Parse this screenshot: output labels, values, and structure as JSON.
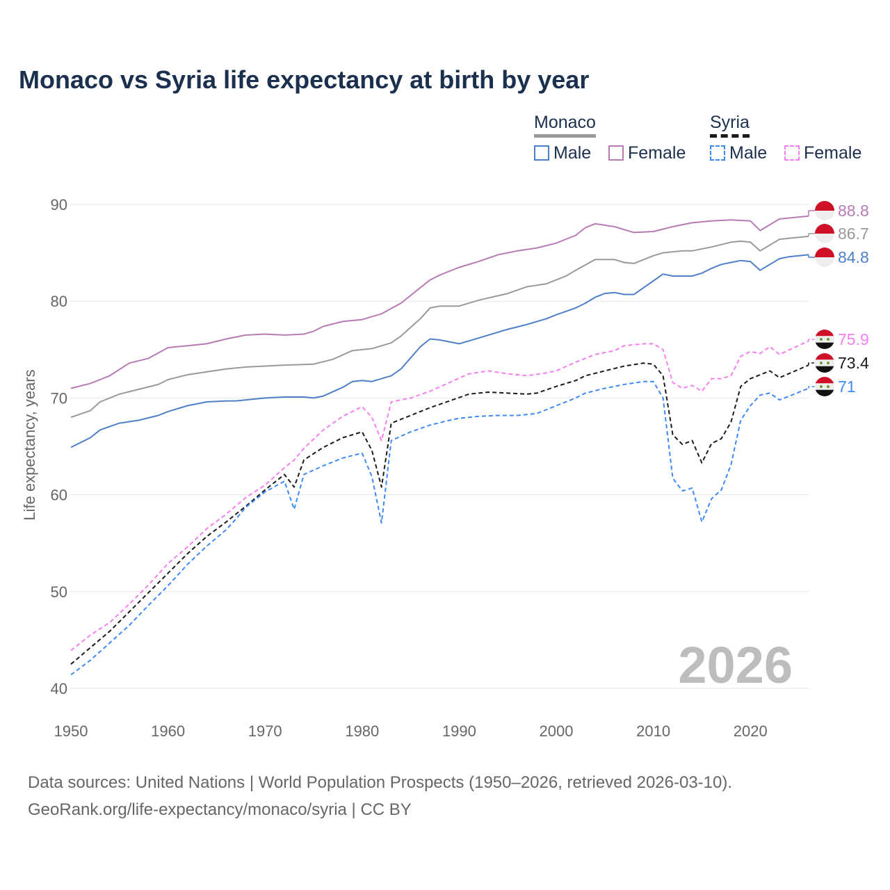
{
  "chart_data": {
    "type": "line",
    "title": "Monaco vs Syria life expectancy at birth by year",
    "xlabel": "",
    "ylabel": "Life expectancy, years",
    "xlim": [
      1950,
      2026
    ],
    "ylim": [
      40,
      90
    ],
    "xticks": [
      1950,
      1960,
      1970,
      1980,
      1990,
      2000,
      2010,
      2020
    ],
    "yticks": [
      40,
      50,
      60,
      70,
      80,
      90
    ],
    "grid": true,
    "watermark_year": "2026",
    "legend": {
      "groups": [
        {
          "name": "Monaco",
          "items": [
            "Male",
            "Female"
          ]
        },
        {
          "name": "Syria",
          "items": [
            "Male",
            "Female"
          ]
        }
      ],
      "placement": "top-right"
    },
    "series": [
      {
        "name": "Monaco Female",
        "color": "#b87ab5",
        "dash": false,
        "end_label": "88.8",
        "x": [
          1950,
          1952,
          1954,
          1956,
          1958,
          1960,
          1962,
          1964,
          1966,
          1968,
          1970,
          1972,
          1974,
          1975,
          1976,
          1978,
          1980,
          1982,
          1984,
          1986,
          1987,
          1988,
          1990,
          1992,
          1994,
          1996,
          1998,
          2000,
          2002,
          2003,
          2004,
          2006,
          2008,
          2010,
          2012,
          2014,
          2016,
          2018,
          2020,
          2021,
          2023,
          2026
        ],
        "y": [
          71.0,
          71.5,
          72.3,
          73.6,
          74.1,
          75.2,
          75.4,
          75.6,
          76.1,
          76.5,
          76.6,
          76.5,
          76.6,
          76.9,
          77.4,
          77.9,
          78.1,
          78.7,
          79.8,
          81.4,
          82.2,
          82.7,
          83.5,
          84.1,
          84.8,
          85.2,
          85.5,
          86.0,
          86.8,
          87.6,
          88.0,
          87.7,
          87.1,
          87.2,
          87.7,
          88.1,
          88.3,
          88.4,
          88.3,
          87.3,
          88.5,
          88.8
        ]
      },
      {
        "name": "Monaco Total",
        "color": "#999999",
        "dash": false,
        "end_label": "86.7",
        "x": [
          1950,
          1952,
          1953,
          1955,
          1957,
          1959,
          1960,
          1962,
          1964,
          1966,
          1968,
          1970,
          1972,
          1975,
          1977,
          1979,
          1981,
          1983,
          1984,
          1986,
          1987,
          1988,
          1990,
          1992,
          1995,
          1997,
          1999,
          2001,
          2002,
          2004,
          2006,
          2007,
          2008,
          2010,
          2011,
          2013,
          2014,
          2016,
          2018,
          2019,
          2020,
          2021,
          2023,
          2026
        ],
        "y": [
          68.0,
          68.7,
          69.6,
          70.4,
          70.9,
          71.4,
          71.9,
          72.4,
          72.7,
          73.0,
          73.2,
          73.3,
          73.4,
          73.5,
          74.0,
          74.9,
          75.1,
          75.7,
          76.4,
          78.2,
          79.3,
          79.5,
          79.5,
          80.1,
          80.8,
          81.5,
          81.8,
          82.6,
          83.2,
          84.3,
          84.3,
          84.0,
          83.9,
          84.7,
          85.0,
          85.2,
          85.2,
          85.6,
          86.1,
          86.2,
          86.1,
          85.2,
          86.4,
          86.7
        ]
      },
      {
        "name": "Monaco Male",
        "color": "#4f7ec9",
        "dash": false,
        "end_label": "84.8",
        "x": [
          1950,
          1952,
          1953,
          1955,
          1957,
          1959,
          1960,
          1962,
          1964,
          1966,
          1967,
          1969,
          1970,
          1972,
          1974,
          1975,
          1976,
          1978,
          1979,
          1980,
          1981,
          1983,
          1984,
          1986,
          1987,
          1988,
          1990,
          1991,
          1993,
          1995,
          1997,
          1999,
          2000,
          2002,
          2003,
          2004,
          2005,
          2006,
          2007,
          2008,
          2009,
          2010,
          2011,
          2012,
          2013,
          2014,
          2015,
          2016,
          2017,
          2018,
          2019,
          2020,
          2021,
          2022,
          2023,
          2024,
          2026
        ],
        "y": [
          64.9,
          65.9,
          66.7,
          67.4,
          67.7,
          68.2,
          68.6,
          69.2,
          69.6,
          69.7,
          69.7,
          69.9,
          70.0,
          70.1,
          70.1,
          70.0,
          70.2,
          71.1,
          71.7,
          71.8,
          71.7,
          72.3,
          73.0,
          75.3,
          76.1,
          76.0,
          75.6,
          75.9,
          76.5,
          77.1,
          77.6,
          78.2,
          78.6,
          79.3,
          79.8,
          80.4,
          80.8,
          80.9,
          80.7,
          80.7,
          81.4,
          82.1,
          82.8,
          82.6,
          82.6,
          82.6,
          82.9,
          83.4,
          83.8,
          84.0,
          84.2,
          84.1,
          83.2,
          83.8,
          84.4,
          84.6,
          84.8
        ]
      },
      {
        "name": "Syria Female",
        "color": "#f57ff0",
        "dash": true,
        "end_label": "75.9",
        "x": [
          1950,
          1952,
          1954,
          1956,
          1958,
          1960,
          1962,
          1964,
          1966,
          1968,
          1970,
          1972,
          1973,
          1974,
          1976,
          1978,
          1980,
          1981,
          1982,
          1983,
          1985,
          1987,
          1989,
          1991,
          1993,
          1995,
          1997,
          1999,
          2000,
          2002,
          2004,
          2006,
          2007,
          2009,
          2010,
          2011,
          2012,
          2013,
          2014,
          2015,
          2016,
          2017,
          2018,
          2019,
          2020,
          2021,
          2022,
          2023,
          2026
        ],
        "y": [
          43.9,
          45.5,
          46.8,
          48.7,
          50.7,
          52.9,
          54.6,
          56.5,
          58.0,
          59.7,
          61.0,
          62.8,
          63.6,
          64.8,
          66.7,
          68.1,
          69.1,
          68.0,
          65.6,
          69.6,
          70.0,
          70.7,
          71.6,
          72.5,
          72.8,
          72.5,
          72.3,
          72.6,
          72.8,
          73.7,
          74.5,
          74.9,
          75.4,
          75.6,
          75.6,
          75.0,
          71.6,
          71.0,
          71.3,
          70.7,
          72.0,
          72.0,
          72.3,
          74.3,
          74.8,
          74.6,
          75.3,
          74.5,
          75.9
        ]
      },
      {
        "name": "Syria Total",
        "color": "#1a1a1a",
        "dash": true,
        "end_label": "73.4",
        "x": [
          1950,
          1952,
          1954,
          1956,
          1958,
          1960,
          1962,
          1964,
          1966,
          1967,
          1968,
          1970,
          1972,
          1973,
          1974,
          1976,
          1978,
          1980,
          1981,
          1982,
          1983,
          1985,
          1987,
          1989,
          1991,
          1993,
          1995,
          1997,
          1998,
          2000,
          2002,
          2003,
          2005,
          2007,
          2009,
          2010,
          2011,
          2012,
          2013,
          2014,
          2015,
          2016,
          2017,
          2018,
          2019,
          2020,
          2022,
          2023,
          2026
        ],
        "y": [
          42.5,
          44.2,
          45.9,
          47.9,
          49.9,
          51.9,
          53.9,
          55.7,
          57.2,
          58.0,
          58.8,
          60.5,
          62.1,
          60.8,
          63.6,
          64.9,
          65.9,
          66.5,
          64.6,
          60.8,
          67.4,
          68.2,
          69.0,
          69.7,
          70.4,
          70.6,
          70.5,
          70.4,
          70.5,
          71.2,
          71.8,
          72.3,
          72.8,
          73.3,
          73.6,
          73.5,
          72.3,
          66.2,
          65.2,
          65.6,
          63.3,
          65.3,
          65.8,
          67.5,
          71.2,
          72.0,
          72.8,
          72.1,
          73.4
        ]
      },
      {
        "name": "Syria Male",
        "color": "#3d8af7",
        "dash": true,
        "end_label": "71",
        "x": [
          1950,
          1952,
          1954,
          1956,
          1958,
          1960,
          1962,
          1964,
          1966,
          1967,
          1968,
          1970,
          1972,
          1973,
          1974,
          1976,
          1978,
          1980,
          1981,
          1982,
          1983,
          1985,
          1987,
          1989,
          1990,
          1992,
          1994,
          1996,
          1998,
          2000,
          2002,
          2003,
          2005,
          2007,
          2009,
          2010,
          2011,
          2012,
          2013,
          2014,
          2015,
          2016,
          2017,
          2018,
          2019,
          2020,
          2021,
          2022,
          2023,
          2026
        ],
        "y": [
          41.4,
          42.9,
          44.7,
          46.5,
          48.6,
          50.6,
          52.8,
          54.7,
          56.4,
          57.5,
          58.7,
          60.3,
          61.4,
          58.5,
          62.1,
          63.0,
          63.8,
          64.3,
          61.9,
          57.1,
          65.6,
          66.5,
          67.2,
          67.7,
          67.9,
          68.1,
          68.2,
          68.2,
          68.4,
          69.2,
          70.0,
          70.5,
          71.0,
          71.4,
          71.7,
          71.7,
          70.0,
          61.7,
          60.4,
          60.7,
          57.2,
          59.6,
          60.5,
          63.1,
          67.7,
          69.2,
          70.3,
          70.5,
          69.8,
          71.0
        ]
      }
    ]
  },
  "legend_colors": {
    "monaco_male": "#4f7ec9",
    "monaco_female": "#b87ab5",
    "syria_male": "#3d8af7",
    "syria_female": "#f57ff0"
  },
  "source": {
    "line1": "Data sources: United Nations | World Population Prospects (1950–2026, retrieved 2026-03-10).",
    "line2": "GeoRank.org/life-expectancy/monaco/syria | CC BY"
  }
}
